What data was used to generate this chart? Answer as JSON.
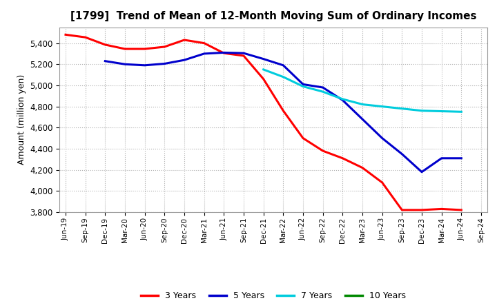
{
  "title": "[1799]  Trend of Mean of 12-Month Moving Sum of Ordinary Incomes",
  "ylabel": "Amount (million yen)",
  "background_color": "#ffffff",
  "grid_color": "#b0b0b0",
  "ylim": [
    3800,
    5550
  ],
  "yticks": [
    3800,
    4000,
    4200,
    4400,
    4600,
    4800,
    5000,
    5200,
    5400
  ],
  "x_labels": [
    "Jun-19",
    "Sep-19",
    "Dec-19",
    "Mar-20",
    "Jun-20",
    "Sep-20",
    "Dec-20",
    "Mar-21",
    "Jun-21",
    "Sep-21",
    "Dec-21",
    "Mar-22",
    "Jun-22",
    "Sep-22",
    "Dec-22",
    "Mar-23",
    "Jun-23",
    "Sep-23",
    "Dec-23",
    "Mar-24",
    "Jun-24",
    "Sep-24"
  ],
  "series": {
    "3 Years": {
      "color": "#ff0000",
      "data_x": [
        0,
        1,
        2,
        3,
        4,
        5,
        6,
        7,
        8,
        9,
        10,
        11,
        12,
        13,
        14,
        15,
        16,
        17,
        18,
        19,
        20
      ],
      "data_y": [
        5480,
        5455,
        5385,
        5345,
        5345,
        5365,
        5430,
        5400,
        5305,
        5280,
        5060,
        4760,
        4500,
        4380,
        4310,
        4220,
        4080,
        3820,
        3820,
        3830,
        3820
      ]
    },
    "5 Years": {
      "color": "#0000cc",
      "data_x": [
        2,
        3,
        4,
        5,
        6,
        7,
        8,
        9,
        10,
        11,
        12,
        13,
        14,
        15,
        16,
        17,
        18,
        19,
        20
      ],
      "data_y": [
        5230,
        5200,
        5190,
        5205,
        5240,
        5300,
        5310,
        5305,
        5250,
        5190,
        5010,
        4980,
        4860,
        4680,
        4500,
        4350,
        4180,
        4310,
        4310
      ]
    },
    "7 Years": {
      "color": "#00ccdd",
      "data_x": [
        10,
        11,
        12,
        13,
        14,
        15,
        16,
        17,
        18,
        19,
        20
      ],
      "data_y": [
        5150,
        5080,
        4990,
        4940,
        4870,
        4820,
        4800,
        4780,
        4760,
        4755,
        4750
      ]
    },
    "10 Years": {
      "color": "#008800",
      "data_x": [],
      "data_y": []
    }
  },
  "legend": {
    "labels": [
      "3 Years",
      "5 Years",
      "7 Years",
      "10 Years"
    ],
    "colors": [
      "#ff0000",
      "#0000cc",
      "#00ccdd",
      "#008800"
    ]
  }
}
